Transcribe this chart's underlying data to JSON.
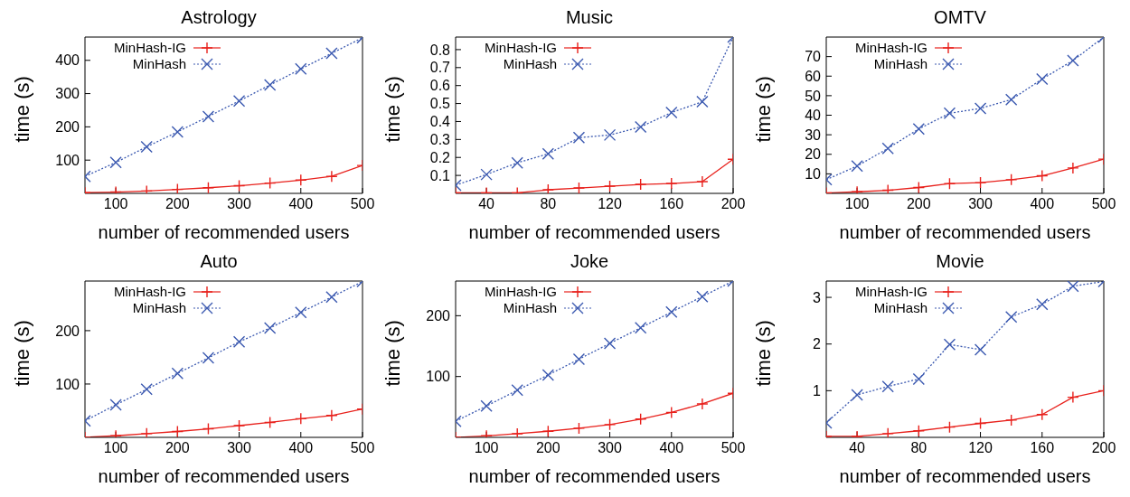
{
  "chart_data": [
    {
      "type": "line",
      "title": "Astrology",
      "xlabel": "number of recommended users",
      "ylabel": "time (s)",
      "x": [
        50,
        100,
        150,
        200,
        250,
        300,
        350,
        400,
        450,
        500
      ],
      "xlim": [
        50,
        500
      ],
      "xticks": [
        100,
        200,
        300,
        400,
        500
      ],
      "ylim": [
        0,
        470
      ],
      "yticks": [
        100,
        200,
        300,
        400
      ],
      "legend": "top left",
      "series": [
        {
          "name": "MinHash-IG",
          "color": "#e8211c",
          "marker": "plus",
          "line_style": "solid",
          "values": [
            2,
            4,
            7,
            12,
            17,
            23,
            31,
            40,
            51,
            84
          ]
        },
        {
          "name": "MinHash",
          "color": "#3b59b0",
          "marker": "cross",
          "line_style": "dotted",
          "values": [
            51,
            93,
            140,
            185,
            231,
            278,
            326,
            374,
            421,
            468
          ]
        }
      ]
    },
    {
      "type": "line",
      "title": "Music",
      "xlabel": "number of recommended users",
      "ylabel": "time (s)",
      "x": [
        20,
        40,
        60,
        80,
        100,
        120,
        140,
        160,
        180,
        200
      ],
      "xlim": [
        20,
        200
      ],
      "xticks": [
        40,
        80,
        120,
        160,
        200
      ],
      "ylim": [
        0,
        0.87
      ],
      "yticks": [
        0.1,
        0.2,
        0.3,
        0.4,
        0.5,
        0.6,
        0.7,
        0.8
      ],
      "legend": "top left",
      "series": [
        {
          "name": "MinHash-IG",
          "color": "#e8211c",
          "marker": "plus",
          "line_style": "solid",
          "values": [
            0.003,
            0.003,
            0.003,
            0.02,
            0.03,
            0.04,
            0.05,
            0.055,
            0.065,
            0.19
          ]
        },
        {
          "name": "MinHash",
          "color": "#3b59b0",
          "marker": "cross",
          "line_style": "dotted",
          "values": [
            0.045,
            0.105,
            0.17,
            0.22,
            0.31,
            0.325,
            0.37,
            0.45,
            0.51,
            0.87
          ]
        }
      ]
    },
    {
      "type": "line",
      "title": "OMTV",
      "xlabel": "number of recommended users",
      "ylabel": "time (s)",
      "x": [
        50,
        100,
        150,
        200,
        250,
        300,
        350,
        400,
        450,
        500
      ],
      "xlim": [
        50,
        500
      ],
      "xticks": [
        100,
        200,
        300,
        400,
        500
      ],
      "ylim": [
        0,
        80
      ],
      "yticks": [
        10,
        20,
        30,
        40,
        50,
        60,
        70
      ],
      "legend": "top left",
      "series": [
        {
          "name": "MinHash-IG",
          "color": "#e8211c",
          "marker": "plus",
          "line_style": "solid",
          "values": [
            0.2,
            0.8,
            1.6,
            3,
            5,
            5.5,
            7,
            9,
            13,
            17.5
          ]
        },
        {
          "name": "MinHash",
          "color": "#3b59b0",
          "marker": "cross",
          "line_style": "dotted",
          "values": [
            7,
            14,
            23,
            33,
            41,
            43.5,
            48,
            58.5,
            68,
            80
          ]
        }
      ]
    },
    {
      "type": "line",
      "title": "Auto",
      "xlabel": "number of recommended users",
      "ylabel": "time (s)",
      "x": [
        50,
        100,
        150,
        200,
        250,
        300,
        350,
        400,
        450,
        500
      ],
      "xlim": [
        50,
        500
      ],
      "xticks": [
        100,
        200,
        300,
        400,
        500
      ],
      "ylim": [
        0,
        293
      ],
      "yticks": [
        100,
        200
      ],
      "legend": "top left",
      "series": [
        {
          "name": "MinHash-IG",
          "color": "#e8211c",
          "marker": "plus",
          "line_style": "solid",
          "values": [
            0,
            3,
            7,
            11,
            16,
            22,
            28,
            35,
            41,
            53
          ]
        },
        {
          "name": "MinHash",
          "color": "#3b59b0",
          "marker": "cross",
          "line_style": "dotted",
          "values": [
            31,
            61,
            90,
            120,
            149,
            179,
            205,
            234,
            263,
            292
          ]
        }
      ]
    },
    {
      "type": "line",
      "title": "Joke",
      "xlabel": "number of recommended users",
      "ylabel": "time (s)",
      "x": [
        50,
        100,
        150,
        200,
        250,
        300,
        350,
        400,
        450,
        500
      ],
      "xlim": [
        50,
        500
      ],
      "xticks": [
        100,
        200,
        300,
        400,
        500
      ],
      "ylim": [
        0,
        257
      ],
      "yticks": [
        100,
        200
      ],
      "legend": "top left",
      "series": [
        {
          "name": "MinHash-IG",
          "color": "#e8211c",
          "marker": "plus",
          "line_style": "solid",
          "values": [
            0,
            2.5,
            6,
            10,
            15,
            21,
            30,
            41,
            55,
            72.5
          ]
        },
        {
          "name": "MinHash",
          "color": "#3b59b0",
          "marker": "cross",
          "line_style": "dotted",
          "values": [
            26.5,
            51.5,
            77.5,
            102.5,
            128.5,
            154.5,
            180,
            206,
            231.5,
            257
          ]
        }
      ]
    },
    {
      "type": "line",
      "title": "Movie",
      "xlabel": "number of recommended users",
      "ylabel": "time (s)",
      "x": [
        20,
        40,
        60,
        80,
        100,
        120,
        140,
        160,
        180,
        200
      ],
      "xlim": [
        20,
        200
      ],
      "xticks": [
        40,
        80,
        120,
        160,
        200
      ],
      "ylim": [
        0,
        3.35
      ],
      "yticks": [
        1,
        2,
        3
      ],
      "legend": "top left",
      "series": [
        {
          "name": "MinHash-IG",
          "color": "#e8211c",
          "marker": "plus",
          "line_style": "solid",
          "values": [
            0.02,
            0.02,
            0.08,
            0.14,
            0.22,
            0.3,
            0.37,
            0.49,
            0.86,
            1.0
          ]
        },
        {
          "name": "MinHash",
          "color": "#3b59b0",
          "marker": "cross",
          "line_style": "dotted",
          "values": [
            0.31,
            0.91,
            1.09,
            1.25,
            1.99,
            1.88,
            2.58,
            2.85,
            3.24,
            3.34
          ]
        }
      ]
    }
  ]
}
